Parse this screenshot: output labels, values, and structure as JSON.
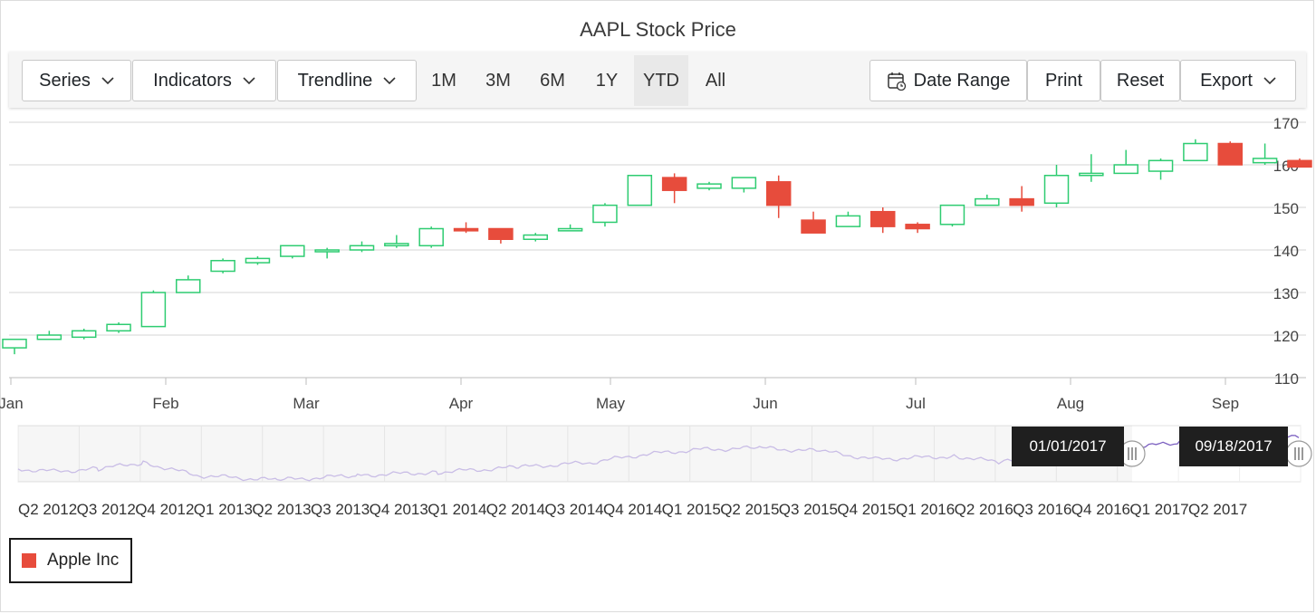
{
  "title": "AAPL Stock Price",
  "toolbar": {
    "series_label": "Series",
    "indicators_label": "Indicators",
    "trendline_label": "Trendline",
    "periods": [
      "1M",
      "3M",
      "6M",
      "1Y",
      "YTD",
      "All"
    ],
    "active_period": "YTD",
    "date_range_label": "Date Range",
    "print_label": "Print",
    "reset_label": "Reset",
    "export_label": "Export"
  },
  "navigator": {
    "start_label": "01/01/2017",
    "end_label": "09/18/2017",
    "quarter_labels": [
      "Q2 2012",
      "Q3 2012",
      "Q4 2012",
      "Q1 2013",
      "Q2 2013",
      "Q3 2013",
      "Q4 2013",
      "Q1 2014",
      "Q2 2014",
      "Q3 2014",
      "Q4 2014",
      "Q1 2015",
      "Q2 2015",
      "Q3 2015",
      "Q4 2015",
      "Q1 2016",
      "Q2 2016",
      "Q3 2016",
      "Q4 2016",
      "Q1 2017",
      "Q2 2017"
    ],
    "line_color": "#c9bde6",
    "selected_line_color": "#7b5fc0"
  },
  "legend": {
    "label": "Apple Inc",
    "color": "#e74c3c"
  },
  "colors": {
    "bull": "#2ecc71",
    "bear": "#e74c3c"
  },
  "chart_data": {
    "type": "candlestick",
    "title": "AAPL Stock Price",
    "y_ticks": [
      110,
      120,
      130,
      140,
      150,
      160,
      170
    ],
    "ylim": [
      110,
      170
    ],
    "x_ticks": [
      "Jan",
      "Feb",
      "Mar",
      "Apr",
      "May",
      "Jun",
      "Jul",
      "Aug",
      "Sep"
    ],
    "y_axis_position": "right",
    "grid": true,
    "series": [
      {
        "name": "Apple Inc",
        "candles": [
          {
            "open": 117,
            "close": 119,
            "high": 119,
            "low": 115.5
          },
          {
            "open": 119,
            "close": 120,
            "high": 121,
            "low": 119
          },
          {
            "open": 119.5,
            "close": 121,
            "high": 121.5,
            "low": 119
          },
          {
            "open": 121,
            "close": 122.5,
            "high": 123,
            "low": 120.5
          },
          {
            "open": 122,
            "close": 130,
            "high": 130.5,
            "low": 122
          },
          {
            "open": 130,
            "close": 133,
            "high": 134,
            "low": 130
          },
          {
            "open": 135,
            "close": 137.5,
            "high": 138,
            "low": 134.5
          },
          {
            "open": 137,
            "close": 138,
            "high": 138.5,
            "low": 136.5
          },
          {
            "open": 138.5,
            "close": 141,
            "high": 141,
            "low": 138
          },
          {
            "open": 140,
            "close": 140,
            "high": 140.5,
            "low": 138
          },
          {
            "open": 140,
            "close": 141,
            "high": 142,
            "low": 139.5
          },
          {
            "open": 141,
            "close": 141.5,
            "high": 143.5,
            "low": 140.5
          },
          {
            "open": 141,
            "close": 145,
            "high": 145.5,
            "low": 140.5
          },
          {
            "open": 145,
            "close": 144.5,
            "high": 146.5,
            "low": 144
          },
          {
            "open": 145,
            "close": 142.5,
            "high": 145,
            "low": 141.5
          },
          {
            "open": 142.5,
            "close": 143.5,
            "high": 144,
            "low": 142
          },
          {
            "open": 144.5,
            "close": 145,
            "high": 146,
            "low": 144.5
          },
          {
            "open": 146.5,
            "close": 150.5,
            "high": 151,
            "low": 145.5
          },
          {
            "open": 150.5,
            "close": 157.5,
            "high": 157.5,
            "low": 150.5
          },
          {
            "open": 157,
            "close": 154,
            "high": 158,
            "low": 151
          },
          {
            "open": 154.5,
            "close": 155.5,
            "high": 156,
            "low": 154
          },
          {
            "open": 154.5,
            "close": 157,
            "high": 157,
            "low": 153.5
          },
          {
            "open": 156,
            "close": 150.5,
            "high": 157.5,
            "low": 147.5
          },
          {
            "open": 147,
            "close": 144,
            "high": 149,
            "low": 144
          },
          {
            "open": 145.5,
            "close": 148,
            "high": 149,
            "low": 145.5
          },
          {
            "open": 149,
            "close": 145.5,
            "high": 150,
            "low": 144
          },
          {
            "open": 146,
            "close": 145,
            "high": 146.5,
            "low": 144
          },
          {
            "open": 146,
            "close": 150.5,
            "high": 150.5,
            "low": 145.5
          },
          {
            "open": 150.5,
            "close": 152,
            "high": 153,
            "low": 150.5
          },
          {
            "open": 152,
            "close": 150.5,
            "high": 155,
            "low": 149
          },
          {
            "open": 151,
            "close": 157.5,
            "high": 160,
            "low": 150
          },
          {
            "open": 157.5,
            "close": 158,
            "high": 162.5,
            "low": 156
          },
          {
            "open": 158,
            "close": 160,
            "high": 163.5,
            "low": 158
          },
          {
            "open": 158.5,
            "close": 161,
            "high": 161.5,
            "low": 156.5
          },
          {
            "open": 161,
            "close": 165,
            "high": 166,
            "low": 161
          },
          {
            "open": 165,
            "close": 160,
            "high": 165.5,
            "low": 160
          },
          {
            "open": 160.5,
            "close": 161.5,
            "high": 165,
            "low": 160
          },
          {
            "open": 161,
            "close": 159.5,
            "high": 161.5,
            "low": 159.5
          }
        ]
      }
    ]
  }
}
